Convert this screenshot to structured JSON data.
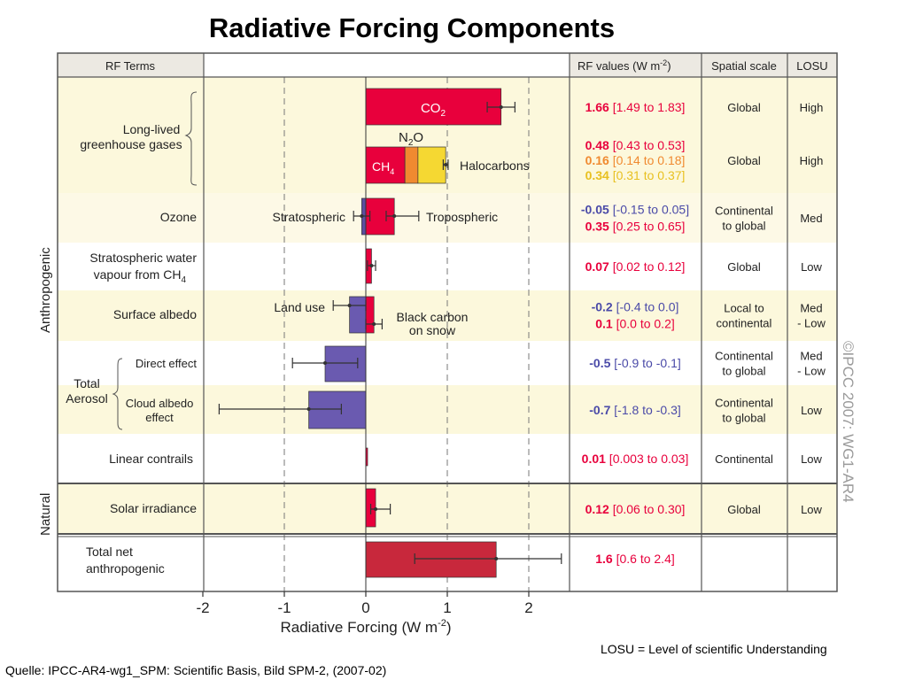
{
  "title": "Radiative Forcing Components",
  "headers": {
    "rf_terms": "RF Terms",
    "rf_values": "RF values (W m",
    "rf_values_sup": "-2",
    "rf_values_close": ")",
    "spatial_scale": "Spatial scale",
    "losu": "LOSU"
  },
  "side_labels": {
    "anthropogenic": "Anthropogenic",
    "natural": "Natural"
  },
  "watermark": "©IPCC 2007: WG1-AR4",
  "axis": {
    "xlabel": "Radiative Forcing  (W m",
    "xlabel_sup": "-2",
    "xlabel_close": ")",
    "ticks": [
      "-2",
      "-1",
      "0",
      "1",
      "2"
    ]
  },
  "groups": {
    "long_lived": [
      "Long-lived",
      "greenhouse gases"
    ],
    "total_aerosol": [
      "Total",
      "Aerosol"
    ]
  },
  "row_labels": {
    "ozone": "Ozone",
    "strat_water": [
      "Stratospheric water",
      "vapour from CH",
      "4"
    ],
    "surface_albedo": "Surface albedo",
    "direct_effect": "Direct effect",
    "cloud_albedo": [
      "Cloud albedo",
      "effect"
    ],
    "linear_contrails": "Linear contrails",
    "solar_irradiance": "Solar irradiance",
    "total_net": [
      "Total net",
      "anthropogenic"
    ]
  },
  "bar_labels": {
    "co2": "CO",
    "co2_sub": "2",
    "n2o": "N",
    "n2o_sub": "2",
    "n2o_end": "O",
    "ch4": "CH",
    "ch4_sub": "4",
    "halocarbons": "Halocarbons",
    "stratospheric": "Stratospheric",
    "tropospheric": "Tropospheric",
    "land_use": "Land use",
    "black_carbon": [
      "Black carbon",
      "on snow"
    ]
  },
  "table_rows": [
    {
      "lines": [
        {
          "value": "1.66",
          "range": "[1.49 to 1.83]",
          "color": "#e8003c"
        }
      ],
      "scale": [
        "Global"
      ],
      "losu": [
        "High"
      ]
    },
    {
      "lines": [
        {
          "value": "0.48",
          "range": "[0.43 to 0.53]",
          "color": "#e8003c"
        },
        {
          "value": "0.16",
          "range": "[0.14 to 0.18]",
          "color": "#f08a30"
        },
        {
          "value": "0.34",
          "range": "[0.31 to 0.37]",
          "color": "#e8c020"
        }
      ],
      "scale": [
        "Global"
      ],
      "losu": [
        "High"
      ]
    },
    {
      "lines": [
        {
          "value": "-0.05",
          "range": "[-0.15 to 0.05]",
          "color": "#4a4aa8"
        },
        {
          "value": "0.35",
          "range": "[0.25 to 0.65]",
          "color": "#e8003c"
        }
      ],
      "scale": [
        "Continental",
        "to global"
      ],
      "losu": [
        "Med"
      ]
    },
    {
      "lines": [
        {
          "value": "0.07",
          "range": "[0.02 to 0.12]",
          "color": "#e8003c"
        }
      ],
      "scale": [
        "Global"
      ],
      "losu": [
        "Low"
      ]
    },
    {
      "lines": [
        {
          "value": "-0.2",
          "range": "[-0.4 to 0.0]",
          "color": "#4a4aa8"
        },
        {
          "value": "0.1",
          "range": "[0.0 to 0.2]",
          "color": "#e8003c"
        }
      ],
      "scale": [
        "Local to",
        "continental"
      ],
      "losu": [
        "Med",
        "- Low"
      ]
    },
    {
      "lines": [
        {
          "value": "-0.5",
          "range": "[-0.9 to -0.1]",
          "color": "#4a4aa8"
        }
      ],
      "scale": [
        "Continental",
        "to global"
      ],
      "losu": [
        "Med",
        "- Low"
      ]
    },
    {
      "lines": [
        {
          "value": "-0.7",
          "range": "[-1.8 to -0.3]",
          "color": "#4a4aa8"
        }
      ],
      "scale": [
        "Continental",
        "to global"
      ],
      "losu": [
        "Low"
      ]
    },
    {
      "lines": [
        {
          "value": "0.01",
          "range": "[0.003 to 0.03]",
          "color": "#e8003c"
        }
      ],
      "scale": [
        "Continental"
      ],
      "losu": [
        "Low"
      ]
    },
    {
      "lines": [
        {
          "value": "0.12",
          "range": "[0.06 to 0.30]",
          "color": "#e8003c"
        }
      ],
      "scale": [
        "Global"
      ],
      "losu": [
        "Low"
      ]
    },
    {
      "lines": [
        {
          "value": "1.6",
          "range": "[0.6 to 2.4]",
          "color": "#e8003c"
        }
      ],
      "scale": [],
      "losu": []
    }
  ],
  "chart_data": {
    "type": "bar",
    "orientation": "horizontal",
    "title": "Radiative Forcing Components",
    "xlabel": "Radiative Forcing (W m-2)",
    "xlim": [
      -2,
      2.5
    ],
    "grid": "dashed vertical lines at -1, 1 and 2",
    "series": [
      {
        "name": "CO2",
        "value": 1.66,
        "low": 1.49,
        "high": 1.83,
        "color": "#e8003c"
      },
      {
        "name": "CH4",
        "value": 0.48,
        "low": 0.43,
        "high": 0.53,
        "color": "#e8003c"
      },
      {
        "name": "N2O",
        "value": 0.16,
        "low": 0.14,
        "high": 0.18,
        "color": "#f08a30"
      },
      {
        "name": "Halocarbons",
        "value": 0.34,
        "low": 0.31,
        "high": 0.37,
        "color": "#f5d832"
      },
      {
        "name": "Stratospheric",
        "value": -0.05,
        "low": -0.15,
        "high": 0.05,
        "color": "#5b4ea0"
      },
      {
        "name": "Tropospheric",
        "value": 0.35,
        "low": 0.25,
        "high": 0.65,
        "color": "#e8003c"
      },
      {
        "name": "Stratospheric water vapour from CH4",
        "value": 0.07,
        "low": 0.02,
        "high": 0.12,
        "color": "#e8003c"
      },
      {
        "name": "Land use",
        "value": -0.2,
        "low": -0.4,
        "high": 0.0,
        "color": "#6a5ab0"
      },
      {
        "name": "Black carbon on snow",
        "value": 0.1,
        "low": 0.0,
        "high": 0.2,
        "color": "#e8003c"
      },
      {
        "name": "Direct effect",
        "value": -0.5,
        "low": -0.9,
        "high": -0.1,
        "color": "#6a5ab0"
      },
      {
        "name": "Cloud albedo effect",
        "value": -0.7,
        "low": -1.8,
        "high": -0.3,
        "color": "#6a5ab0"
      },
      {
        "name": "Linear contrails",
        "value": 0.01,
        "low": 0.003,
        "high": 0.03,
        "color": "#e8003c"
      },
      {
        "name": "Solar irradiance",
        "value": 0.12,
        "low": 0.06,
        "high": 0.3,
        "color": "#e8003c"
      },
      {
        "name": "Total net anthropogenic",
        "value": 1.6,
        "low": 0.6,
        "high": 2.4,
        "color": "#c8283c"
      }
    ]
  },
  "footer": {
    "losu_note": "LOSU = Level of scientific Understanding",
    "source": "Quelle: IPCC-AR4-wg1_SPM: Scientific Basis, Bild SPM-2,  (2007-02)"
  }
}
